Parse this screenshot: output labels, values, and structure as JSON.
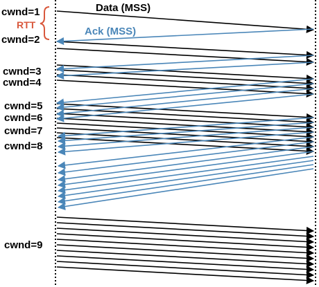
{
  "diagram": {
    "data_label": "Data (MSS)",
    "ack_label": "Ack (MSS)",
    "rtt_label": "RTT",
    "cwnd_labels": [
      "cwnd=1",
      "cwnd=2",
      "cwnd=3",
      "cwnd=4",
      "cwnd=5",
      "cwnd=6",
      "cwnd=7",
      "cwnd=8",
      "cwnd=9"
    ],
    "colors": {
      "data": "#000000",
      "ack": "#4a86b8",
      "rtt": "#d9583c"
    }
  }
}
